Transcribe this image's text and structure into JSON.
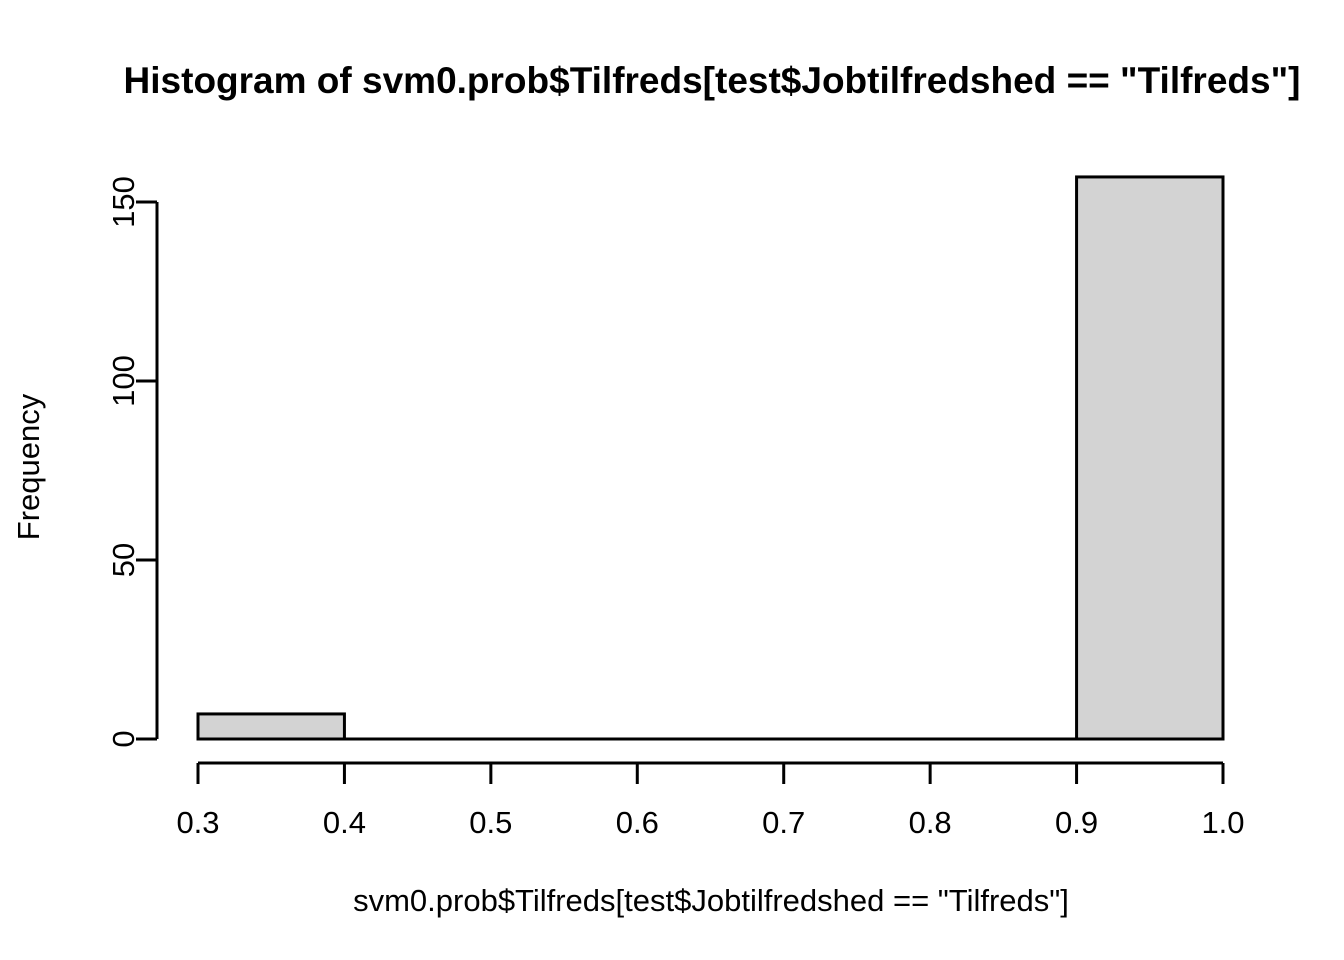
{
  "chart_data": {
    "type": "bar",
    "subtype": "histogram",
    "title": "Histogram of svm0.prob$Tilfreds[test$Jobtilfredshed == \"Tilfreds\"]",
    "xlabel": "svm0.prob$Tilfreds[test$Jobtilfredshed == \"Tilfreds\"]",
    "ylabel": "Frequency",
    "breaks": [
      0.3,
      0.4,
      0.5,
      0.6,
      0.7,
      0.8,
      0.9,
      1.0
    ],
    "counts": [
      7,
      0,
      0,
      0,
      0,
      0,
      157
    ],
    "xlim": [
      0.3,
      1.0
    ],
    "ylim": [
      0,
      150
    ],
    "x_ticks": [
      0.3,
      0.4,
      0.5,
      0.6,
      0.7,
      0.8,
      0.9,
      1.0
    ],
    "x_tick_labels": [
      "0.3",
      "0.4",
      "0.5",
      "0.6",
      "0.7",
      "0.8",
      "0.9",
      "1.0"
    ],
    "y_ticks": [
      0,
      50,
      100,
      150
    ],
    "y_tick_labels": [
      "0",
      "50",
      "100",
      "150"
    ],
    "grid": false,
    "legend": "none",
    "colors": {
      "bar_fill": "#d3d3d3",
      "bar_border": "#000000",
      "axis": "#000000",
      "text": "#000000",
      "background": "#ffffff"
    }
  }
}
